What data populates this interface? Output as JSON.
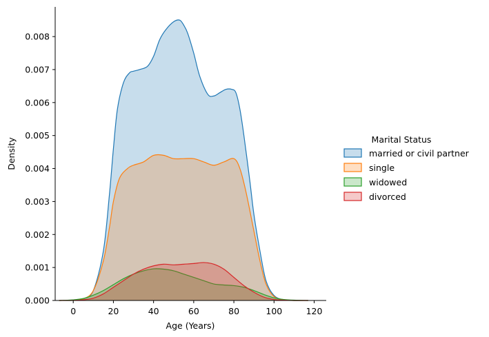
{
  "chart_data": {
    "type": "area",
    "xlabel": "Age (Years)",
    "ylabel": "Density",
    "xlim": [
      -9,
      126
    ],
    "ylim": [
      0,
      0.0089
    ],
    "xticks": [
      0,
      20,
      40,
      60,
      80,
      100,
      120
    ],
    "yticks": [
      0.0,
      0.001,
      0.002,
      0.003,
      0.004,
      0.005,
      0.006,
      0.007,
      0.008
    ],
    "ytick_labels": [
      "0.000",
      "0.001",
      "0.002",
      "0.003",
      "0.004",
      "0.005",
      "0.006",
      "0.007",
      "0.008"
    ],
    "grid": false,
    "legend": {
      "title": "Marital Status",
      "placement": "right"
    },
    "series": [
      {
        "name": "married or civil partner",
        "color": "#1f77b4",
        "x": [
          -7,
          0,
          5,
          10,
          15,
          18,
          20,
          22,
          25,
          28,
          30,
          33,
          37,
          40,
          43,
          46,
          50,
          53,
          55,
          57,
          60,
          63,
          67,
          70,
          73,
          76,
          79,
          81,
          83,
          85,
          88,
          90,
          93,
          96,
          100,
          105,
          110,
          117
        ],
        "y": [
          0,
          1e-05,
          5e-05,
          0.0003,
          0.0015,
          0.0032,
          0.0046,
          0.0058,
          0.0066,
          0.0069,
          0.00695,
          0.007,
          0.0071,
          0.0074,
          0.0079,
          0.0082,
          0.00845,
          0.0085,
          0.00835,
          0.0081,
          0.0075,
          0.0068,
          0.00625,
          0.0062,
          0.0063,
          0.0064,
          0.0064,
          0.0063,
          0.0058,
          0.005,
          0.0036,
          0.0026,
          0.0015,
          0.0006,
          0.00015,
          2e-05,
          0,
          0
        ]
      },
      {
        "name": "single",
        "color": "#ff7f0e",
        "x": [
          -7,
          0,
          5,
          10,
          15,
          18,
          20,
          23,
          27,
          30,
          35,
          40,
          45,
          50,
          55,
          60,
          65,
          70,
          75,
          80,
          83,
          86,
          90,
          93,
          96,
          100,
          105,
          110,
          117
        ],
        "y": [
          0,
          1e-05,
          5e-05,
          0.0003,
          0.0012,
          0.0022,
          0.003,
          0.0037,
          0.004,
          0.0041,
          0.0042,
          0.0044,
          0.0044,
          0.0043,
          0.0043,
          0.0043,
          0.0042,
          0.0041,
          0.0042,
          0.0043,
          0.004,
          0.0033,
          0.0021,
          0.0012,
          0.0005,
          0.00012,
          2e-05,
          0,
          0
        ]
      },
      {
        "name": "widowed",
        "color": "#2ca02c",
        "x": [
          -7,
          0,
          5,
          10,
          15,
          20,
          25,
          30,
          35,
          40,
          45,
          50,
          55,
          60,
          65,
          70,
          75,
          80,
          85,
          90,
          95,
          100,
          105,
          110,
          117
        ],
        "y": [
          0,
          2e-05,
          6e-05,
          0.00016,
          0.0003,
          0.00048,
          0.00066,
          0.0008,
          0.0009,
          0.00096,
          0.00095,
          0.0009,
          0.0008,
          0.0007,
          0.0006,
          0.0005,
          0.00047,
          0.00045,
          0.0004,
          0.0003,
          0.00018,
          8e-05,
          3e-05,
          1e-05,
          0
        ]
      },
      {
        "name": "divorced",
        "color": "#d62728",
        "x": [
          -7,
          0,
          5,
          10,
          15,
          20,
          25,
          30,
          35,
          40,
          45,
          50,
          55,
          60,
          65,
          70,
          75,
          80,
          85,
          90,
          95,
          100,
          105,
          110,
          117
        ],
        "y": [
          0,
          3e-06,
          2e-05,
          7e-05,
          0.0002,
          0.0004,
          0.0006,
          0.0008,
          0.00095,
          0.00105,
          0.0011,
          0.00108,
          0.0011,
          0.00112,
          0.00115,
          0.0011,
          0.00095,
          0.0007,
          0.00045,
          0.00025,
          0.0001,
          3e-05,
          1e-05,
          0,
          0
        ]
      }
    ]
  }
}
